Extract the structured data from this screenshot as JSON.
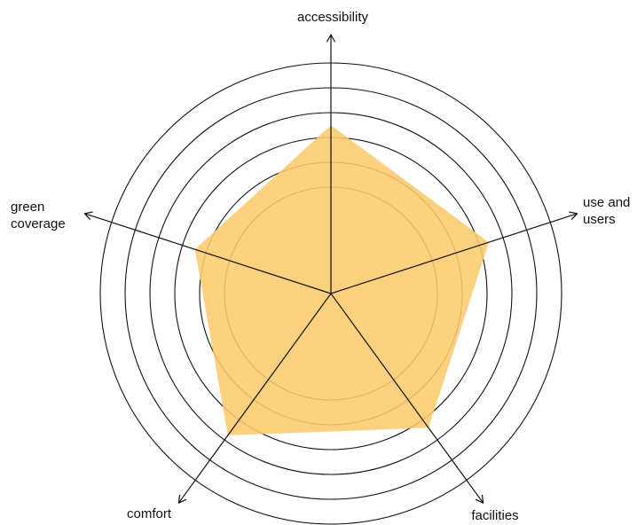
{
  "chart_data": {
    "type": "radar",
    "axes": [
      "accessibility",
      "use and users",
      "facilities",
      "comfort",
      "green coverage"
    ],
    "axis_label_lines": [
      [
        "accessibility"
      ],
      [
        "use and",
        "users"
      ],
      [
        "facilities"
      ],
      [
        "comfort"
      ],
      [
        "green",
        "coverage"
      ]
    ],
    "rings": 6,
    "series": [
      {
        "values": [
          0.73,
          0.72,
          0.72,
          0.76,
          0.62
        ]
      }
    ],
    "fill_color": "#FBC96C",
    "grid": true
  }
}
